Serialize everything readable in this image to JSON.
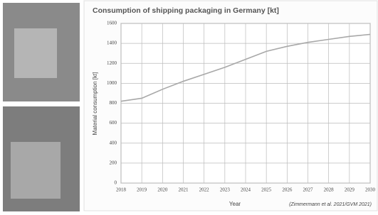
{
  "chart_data": {
    "type": "line",
    "title": "Consumption of shipping packaging in Germany [kt]",
    "x_label": "Year",
    "y_label": "Material consumption [kt]",
    "source": "(Zimmermann et al. 2021/GVM 2021)",
    "x": [
      2018,
      2019,
      2020,
      2021,
      2022,
      2023,
      2024,
      2025,
      2026,
      2027,
      2028,
      2029,
      2030
    ],
    "series": [
      {
        "color": "#a8a8a8",
        "values": [
          820,
          850,
          940,
          1020,
          1090,
          1160,
          1240,
          1320,
          1370,
          1410,
          1440,
          1470,
          1490
        ]
      }
    ],
    "xlim": [
      2018,
      2030
    ],
    "xticks": [
      2018,
      2019,
      2020,
      2021,
      2022,
      2023,
      2024,
      2025,
      2026,
      2027,
      2028,
      2029,
      2030
    ],
    "ylim": [
      0,
      1600
    ],
    "yticks": [
      0,
      200,
      400,
      600,
      800,
      1000,
      1200,
      1400,
      1600
    ],
    "grid": true
  }
}
